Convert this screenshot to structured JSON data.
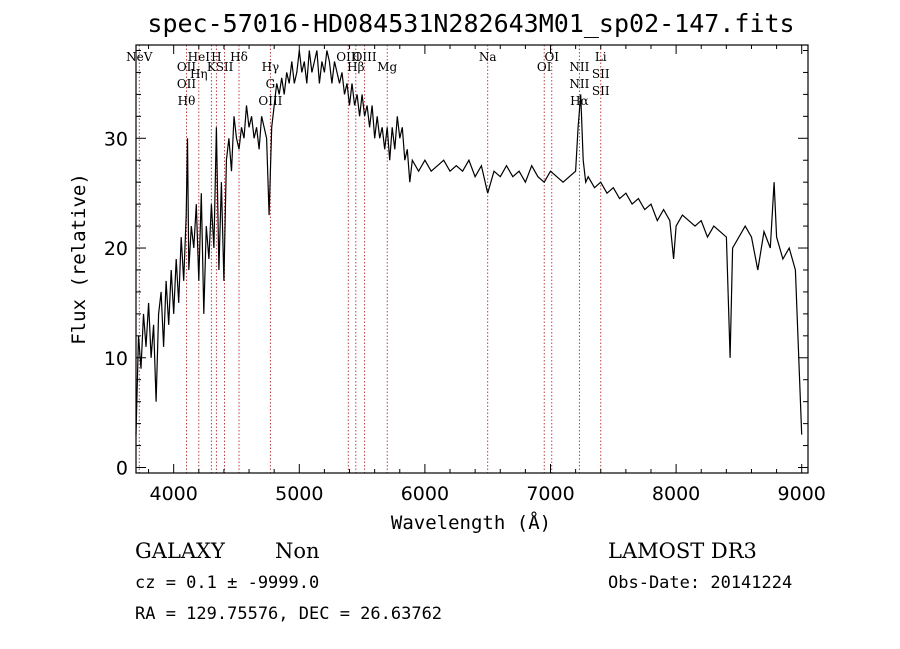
{
  "chart_data": {
    "type": "line",
    "title": "spec-57016-HD084531N282643M01_sp02-147.fits",
    "xlabel": "Wavelength (Å)",
    "ylabel": "Flux (relative)",
    "xlim": [
      3700,
      9050
    ],
    "ylim": [
      -0.5,
      38.5
    ],
    "x_ticks": [
      4000,
      5000,
      6000,
      7000,
      8000,
      9000
    ],
    "x_tick_labels": [
      "4000",
      "5000",
      "6000",
      "7000",
      "8000",
      "9000"
    ],
    "y_ticks": [
      0,
      10,
      20,
      30
    ],
    "y_tick_labels": [
      "0",
      "10",
      "20",
      "30"
    ],
    "grid": false,
    "series": [
      {
        "color": "#000000",
        "points": [
          [
            3700,
            3
          ],
          [
            3720,
            12
          ],
          [
            3740,
            9
          ],
          [
            3760,
            14
          ],
          [
            3780,
            11
          ],
          [
            3800,
            15
          ],
          [
            3820,
            10
          ],
          [
            3840,
            13
          ],
          [
            3860,
            6
          ],
          [
            3880,
            14
          ],
          [
            3900,
            16
          ],
          [
            3920,
            11
          ],
          [
            3940,
            17
          ],
          [
            3960,
            13
          ],
          [
            3980,
            18
          ],
          [
            4000,
            14
          ],
          [
            4020,
            19
          ],
          [
            4040,
            15
          ],
          [
            4060,
            21
          ],
          [
            4080,
            17
          ],
          [
            4100,
            23
          ],
          [
            4110,
            30
          ],
          [
            4120,
            18
          ],
          [
            4140,
            22
          ],
          [
            4160,
            20
          ],
          [
            4180,
            24
          ],
          [
            4200,
            17
          ],
          [
            4220,
            25
          ],
          [
            4240,
            14
          ],
          [
            4260,
            22
          ],
          [
            4280,
            19
          ],
          [
            4300,
            24
          ],
          [
            4320,
            20
          ],
          [
            4340,
            31
          ],
          [
            4360,
            18
          ],
          [
            4380,
            26
          ],
          [
            4400,
            17
          ],
          [
            4420,
            28
          ],
          [
            4440,
            30
          ],
          [
            4460,
            27
          ],
          [
            4480,
            32
          ],
          [
            4500,
            30
          ],
          [
            4520,
            29
          ],
          [
            4540,
            31
          ],
          [
            4560,
            30
          ],
          [
            4580,
            33
          ],
          [
            4600,
            31
          ],
          [
            4620,
            32
          ],
          [
            4640,
            30
          ],
          [
            4660,
            31
          ],
          [
            4680,
            29
          ],
          [
            4700,
            32
          ],
          [
            4720,
            31
          ],
          [
            4740,
            30
          ],
          [
            4760,
            23
          ],
          [
            4780,
            31
          ],
          [
            4800,
            33
          ],
          [
            4820,
            35
          ],
          [
            4840,
            34
          ],
          [
            4860,
            35.5
          ],
          [
            4880,
            34
          ],
          [
            4900,
            36
          ],
          [
            4920,
            35
          ],
          [
            4940,
            37
          ],
          [
            4960,
            35
          ],
          [
            4980,
            36
          ],
          [
            5000,
            38
          ],
          [
            5020,
            36
          ],
          [
            5040,
            37
          ],
          [
            5060,
            35
          ],
          [
            5080,
            38
          ],
          [
            5100,
            36
          ],
          [
            5120,
            37
          ],
          [
            5140,
            38
          ],
          [
            5160,
            35
          ],
          [
            5180,
            37
          ],
          [
            5200,
            36
          ],
          [
            5220,
            38
          ],
          [
            5240,
            37
          ],
          [
            5260,
            35
          ],
          [
            5280,
            37
          ],
          [
            5300,
            36
          ],
          [
            5320,
            35
          ],
          [
            5340,
            36
          ],
          [
            5360,
            34
          ],
          [
            5380,
            35
          ],
          [
            5400,
            33
          ],
          [
            5420,
            35
          ],
          [
            5440,
            33
          ],
          [
            5460,
            34
          ],
          [
            5480,
            32
          ],
          [
            5500,
            34
          ],
          [
            5520,
            32
          ],
          [
            5540,
            33
          ],
          [
            5560,
            31
          ],
          [
            5580,
            33
          ],
          [
            5600,
            30
          ],
          [
            5620,
            32
          ],
          [
            5640,
            30
          ],
          [
            5660,
            31
          ],
          [
            5680,
            29
          ],
          [
            5700,
            31
          ],
          [
            5720,
            28
          ],
          [
            5740,
            31
          ],
          [
            5760,
            29
          ],
          [
            5780,
            32
          ],
          [
            5800,
            30
          ],
          [
            5820,
            31
          ],
          [
            5840,
            28
          ],
          [
            5860,
            29
          ],
          [
            5880,
            26
          ],
          [
            5900,
            28
          ],
          [
            5950,
            27
          ],
          [
            6000,
            28
          ],
          [
            6050,
            27
          ],
          [
            6100,
            27.5
          ],
          [
            6150,
            28
          ],
          [
            6200,
            27
          ],
          [
            6250,
            27.5
          ],
          [
            6300,
            27
          ],
          [
            6350,
            28
          ],
          [
            6400,
            26.5
          ],
          [
            6450,
            27.5
          ],
          [
            6500,
            25
          ],
          [
            6550,
            27
          ],
          [
            6600,
            26.5
          ],
          [
            6650,
            27.5
          ],
          [
            6700,
            26.5
          ],
          [
            6750,
            27
          ],
          [
            6800,
            26
          ],
          [
            6850,
            27.5
          ],
          [
            6900,
            26.5
          ],
          [
            6950,
            26
          ],
          [
            7000,
            27
          ],
          [
            7050,
            26.5
          ],
          [
            7100,
            26
          ],
          [
            7150,
            26.5
          ],
          [
            7200,
            27
          ],
          [
            7220,
            31
          ],
          [
            7240,
            34
          ],
          [
            7260,
            28
          ],
          [
            7280,
            26
          ],
          [
            7300,
            26.5
          ],
          [
            7350,
            25.5
          ],
          [
            7400,
            26
          ],
          [
            7450,
            25
          ],
          [
            7500,
            25.5
          ],
          [
            7550,
            24.5
          ],
          [
            7600,
            25
          ],
          [
            7650,
            24
          ],
          [
            7700,
            24.5
          ],
          [
            7750,
            23.5
          ],
          [
            7800,
            24
          ],
          [
            7850,
            22.5
          ],
          [
            7900,
            23.5
          ],
          [
            7950,
            22.5
          ],
          [
            7980,
            19
          ],
          [
            8000,
            22
          ],
          [
            8050,
            23
          ],
          [
            8100,
            22.5
          ],
          [
            8150,
            22
          ],
          [
            8200,
            22.5
          ],
          [
            8250,
            21
          ],
          [
            8300,
            22
          ],
          [
            8350,
            21.5
          ],
          [
            8400,
            21
          ],
          [
            8430,
            10
          ],
          [
            8450,
            20
          ],
          [
            8500,
            21
          ],
          [
            8550,
            22
          ],
          [
            8600,
            21
          ],
          [
            8650,
            18
          ],
          [
            8700,
            21.5
          ],
          [
            8750,
            20
          ],
          [
            8780,
            26
          ],
          [
            8800,
            21
          ],
          [
            8850,
            19
          ],
          [
            8900,
            20
          ],
          [
            8950,
            18
          ],
          [
            9000,
            3
          ]
        ]
      }
    ],
    "lines": [
      {
        "wavelength": 3726,
        "labels": [
          "NeV"
        ]
      },
      {
        "wavelength": 4102,
        "labels": [
          "OII",
          "OII",
          "Hθ"
        ]
      },
      {
        "wavelength": 4200,
        "labels": [
          "HeI",
          "Hη"
        ]
      },
      {
        "wavelength": 4300,
        "labels": [
          "K"
        ]
      },
      {
        "wavelength": 4340,
        "labels": [
          "H"
        ]
      },
      {
        "wavelength": 4405,
        "labels": [
          "SII"
        ]
      },
      {
        "wavelength": 4520,
        "labels": [
          "Hδ"
        ]
      },
      {
        "wavelength": 4770,
        "labels": [
          "Hγ",
          "G",
          "OIII"
        ]
      },
      {
        "wavelength": 5390,
        "labels": [
          "OIII"
        ]
      },
      {
        "wavelength": 5450,
        "labels": [
          "Hβ"
        ]
      },
      {
        "wavelength": 5520,
        "labels": [
          "OIII"
        ]
      },
      {
        "wavelength": 5700,
        "labels": [
          "Mg"
        ]
      },
      {
        "wavelength": 6500,
        "labels": [
          "Na"
        ]
      },
      {
        "wavelength": 6950,
        "labels": [
          "OI"
        ]
      },
      {
        "wavelength": 7010,
        "labels": [
          "OI"
        ]
      },
      {
        "wavelength": 7230,
        "labels": [
          "NII",
          "NII",
          "Hα"
        ]
      },
      {
        "wavelength": 7400,
        "labels": [
          "Li",
          "SII",
          "SII"
        ]
      }
    ]
  },
  "footer": {
    "class_label": "GALAXY",
    "subclass_label": "Non",
    "survey_label": "LAMOST DR3",
    "cz_text": "cz = 0.1 ± -9999.0",
    "obs_date_text": "Obs-Date: 20141224",
    "coords_text": "RA = 129.75576, DEC =  26.63762"
  },
  "colors": {
    "spectrum": "#000000",
    "line_markers": "#b03030",
    "axes": "#000000",
    "background": "#ffffff"
  }
}
